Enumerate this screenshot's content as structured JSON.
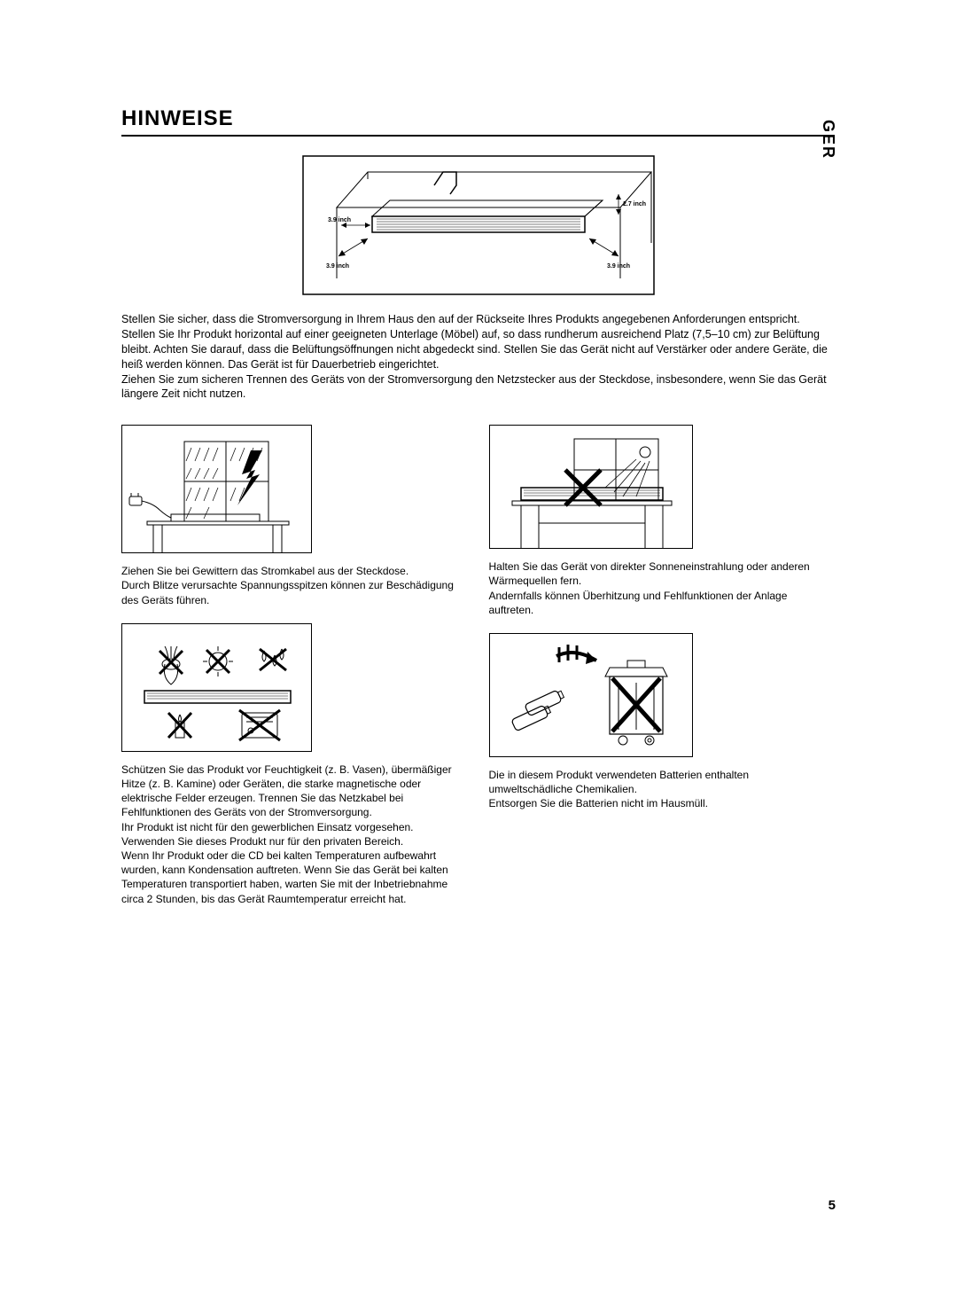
{
  "lang_tab": "GER",
  "title": "HINWEISE",
  "main_figure": {
    "labels": {
      "left_inner": "3.9 inch",
      "top_right": "2.7 inch",
      "bottom_left": "3.9 inch",
      "bottom_right": "3.9 inch"
    },
    "stroke": "#000000",
    "label_fontsize": 7
  },
  "intro": "Stellen Sie sicher, dass die Stromversorgung in Ihrem Haus den auf der Rückseite Ihres Produkts angegebenen Anforderungen entspricht. Stellen Sie Ihr Produkt horizontal auf einer geeigneten Unterlage (Möbel) auf, so dass rundherum ausreichend Platz (7,5–10 cm) zur Belüftung bleibt. Achten Sie darauf, dass die Belüftungsöffnungen nicht abgedeckt sind. Stellen Sie das Gerät nicht auf Verstärker oder andere Geräte, die heiß werden können. Das Gerät ist für Dauerbetrieb eingerichtet.\nZiehen Sie zum sicheren Trennen des Geräts von der Stromversorgung den Netzstecker aus der Steckdose, insbesondere, wenn Sie das Gerät längere Zeit nicht nutzen.",
  "left": {
    "block1_caption": "Ziehen Sie bei Gewittern das Stromkabel aus der Steckdose.\nDurch Blitze verursachte Spannungsspitzen können zur Beschädigung des Geräts führen.",
    "block2_caption": "Schützen Sie das Produkt vor Feuchtigkeit (z. B. Vasen), übermäßiger Hitze (z. B. Kamine) oder Geräten, die starke magnetische oder elektrische Felder erzeugen. Trennen Sie das Netzkabel bei Fehlfunktionen des Geräts von der Stromversorgung.\nIhr Produkt ist nicht für den gewerblichen Einsatz vorgesehen. Verwenden Sie dieses Produkt nur für den privaten Bereich.\nWenn Ihr Produkt oder die CD bei kalten Temperaturen aufbewahrt wurden, kann Kondensation auftreten. Wenn Sie das Gerät bei kalten Temperaturen transportiert haben, warten Sie mit der Inbetriebnahme circa 2 Stunden, bis das Gerät Raumtemperatur erreicht hat."
  },
  "right": {
    "block1_caption": "Halten Sie das Gerät von direkter Sonneneinstrahlung oder anderen Wärmequellen fern.\nAndernfalls können Überhitzung und Fehlfunktionen der Anlage auftreten.",
    "block2_caption": "Die in diesem Produkt verwendeten Batterien enthalten umweltschädliche Chemikalien.\nEntsorgen Sie die Batterien nicht im Hausmüll."
  },
  "page_number": "5",
  "colors": {
    "text": "#000000",
    "background": "#ffffff",
    "rule": "#000000"
  },
  "typography": {
    "title_fontsize": 24,
    "body_fontsize": 12.5,
    "caption_fontsize": 12,
    "tab_fontsize": 18
  }
}
